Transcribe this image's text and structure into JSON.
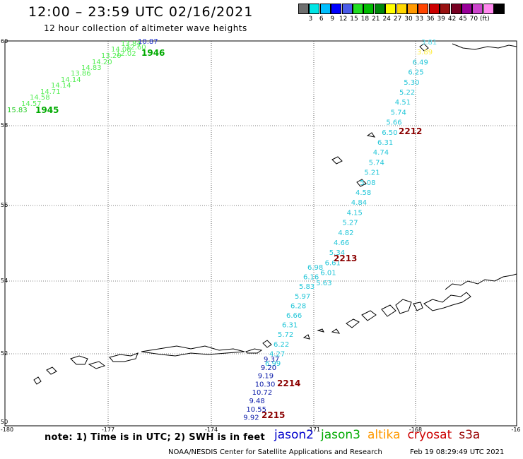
{
  "header": {
    "title": "12:00 – 23:59 UTC 02/16/2021",
    "subtitle": "12 hour collection of altimeter wave heights"
  },
  "colorbar": {
    "colors": [
      "#6e6e6e",
      "#00e5e5",
      "#00bfff",
      "#0000ff",
      "#4a5be8",
      "#22dd22",
      "#00bb00",
      "#00880a",
      "#ffff00",
      "#ffd700",
      "#ff9900",
      "#ff4400",
      "#cc0000",
      "#991111",
      "#770022",
      "#990099",
      "#cc44cc",
      "#ff88ee",
      "#000000"
    ],
    "labels": [
      "3",
      "6",
      "9",
      "12",
      "15",
      "18",
      "21",
      "24",
      "27",
      "30",
      "33",
      "36",
      "39",
      "42",
      "45",
      "70",
      "(ft)"
    ]
  },
  "map": {
    "lon_ticks": [
      "-180",
      "-177",
      "-174",
      "-171",
      "-168",
      "-16"
    ],
    "lat_ticks": [
      "60",
      "58",
      "56",
      "54",
      "52",
      "50"
    ]
  },
  "tracks": [
    {
      "time": "1945",
      "color": "#00aa00",
      "values": [
        "15.83",
        "14.57",
        "14.58",
        "14.71",
        "14.14",
        "14.14",
        "13.86",
        "14.83",
        "14.20",
        "13.20",
        "14.08",
        "13.84",
        "12.02",
        "12.60",
        "10.87"
      ],
      "colors": [
        "#22cc22",
        "#55ee55",
        "#55ee55",
        "#55ee55",
        "#55ee55",
        "#55ee55",
        "#55ee55",
        "#55ee55",
        "#55ee55",
        "#55ee55",
        "#55ee55",
        "#55ee55",
        "#55ee55",
        "#55ee55",
        "#2233cc"
      ]
    },
    {
      "time": "1946"
    },
    {
      "time": "2212",
      "values": [
        "3.81",
        "3.89",
        "6.49",
        "6.25",
        "5.30",
        "5.22",
        "4.51",
        "5.74",
        "5.66",
        "6.50",
        "6.31",
        "4.74",
        "5.74",
        "5.21",
        "5.08",
        "4.58",
        "4.84",
        "4.15",
        "5.27",
        "4.82",
        "4.66",
        "5.34",
        "6.61",
        "6.01",
        "5.63"
      ]
    },
    {
      "time": "2213",
      "values": [
        "6.98",
        "6.16",
        "5.83",
        "5.97",
        "6.28",
        "6.66",
        "6.31",
        "5.72",
        "6.22",
        "4.27",
        "6.99"
      ]
    },
    {
      "time": "2214",
      "values": [
        "9.37",
        "9.20",
        "9.19",
        "10.30",
        "10.72",
        "9.48",
        "10.55",
        "9.92"
      ]
    },
    {
      "time": "2215"
    }
  ],
  "footer": {
    "note": "note: 1) Time is in UTC; 2) SWH is in feet",
    "satellites": [
      {
        "name": "jason2",
        "color": "#0000cc"
      },
      {
        "name": "jason3",
        "color": "#00aa00"
      },
      {
        "name": "altika",
        "color": "#ff9900"
      },
      {
        "name": "cryosat",
        "color": "#cc0000"
      },
      {
        "name": "s3a",
        "color": "#990000"
      }
    ],
    "credit": "NOAA/NESDIS Center for Satellite Applications and Research",
    "date": "Feb 19 08:29:49 UTC 2021"
  }
}
